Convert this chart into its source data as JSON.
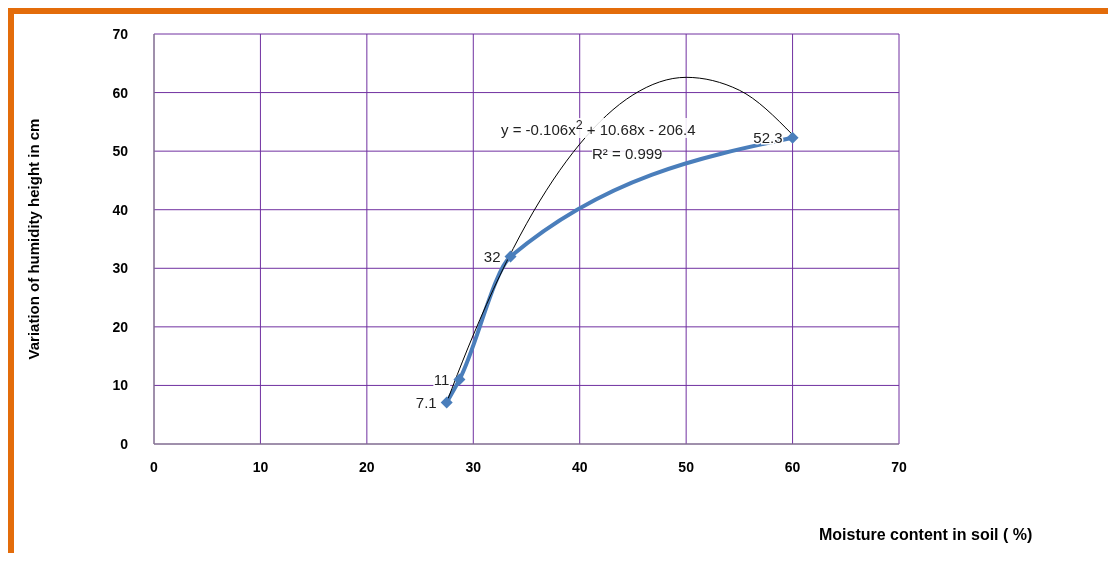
{
  "chart_data": {
    "type": "line",
    "xlabel": "Moisture content in soil ( %)",
    "ylabel": "Variation of humidity height in cm",
    "xlim": [
      0,
      70
    ],
    "xticks": [
      0,
      10,
      20,
      30,
      40,
      50,
      60,
      70
    ],
    "ylim": [
      0,
      70
    ],
    "yticks": [
      0,
      10,
      20,
      30,
      40,
      50,
      60,
      70
    ],
    "grid": true,
    "marker": "diamond",
    "annotations": [
      "y = -0.106x$^{2}$ + 10.68x - 206.4",
      "R² = 0.999"
    ],
    "series": [
      {
        "color": "#4a7ebb",
        "x": [
          27.5,
          28.7,
          33.5,
          60
        ],
        "values": [
          7.1,
          11,
          32,
          52.3
        ],
        "value_labels": [
          "7.1",
          "11",
          "32",
          "52.3"
        ]
      },
      {
        "type": "line",
        "color": "#000000",
        "marker": "none",
        "x": [
          27.5,
          28,
          30,
          35,
          40,
          45,
          50,
          55,
          60
        ],
        "values": [
          7.1,
          9.5,
          18.6,
          37.6,
          51.2,
          59.6,
          62.6,
          60.4,
          52.8
        ]
      }
    ]
  }
}
